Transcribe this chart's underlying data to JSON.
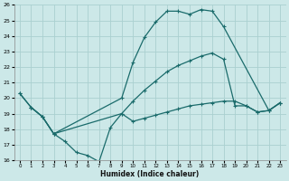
{
  "xlabel": "Humidex (Indice chaleur)",
  "bg_color": "#cce8e8",
  "grid_color": "#aad0d0",
  "line_color": "#1a6b6b",
  "ylim": [
    16,
    26
  ],
  "xlim": [
    -0.5,
    23.5
  ],
  "yticks": [
    16,
    17,
    18,
    19,
    20,
    21,
    22,
    23,
    24,
    25,
    26
  ],
  "xticks": [
    0,
    1,
    2,
    3,
    4,
    5,
    6,
    7,
    8,
    9,
    10,
    11,
    12,
    13,
    14,
    15,
    16,
    17,
    18,
    19,
    20,
    21,
    22,
    23
  ],
  "line1_x": [
    0,
    1,
    2,
    3,
    9,
    10,
    11,
    12,
    13,
    14,
    15,
    16,
    17,
    18,
    22,
    23
  ],
  "line1_y": [
    20.3,
    19.4,
    18.8,
    17.7,
    20.0,
    22.3,
    23.9,
    24.9,
    25.6,
    25.6,
    25.4,
    25.7,
    25.6,
    24.6,
    19.2,
    19.7
  ],
  "line2_x": [
    0,
    1,
    2,
    3,
    9,
    10,
    11,
    12,
    13,
    14,
    15,
    16,
    17,
    18,
    19,
    20,
    21,
    22,
    23
  ],
  "line2_y": [
    20.3,
    19.4,
    18.8,
    17.7,
    19.0,
    19.8,
    20.5,
    21.1,
    21.7,
    22.1,
    22.4,
    22.7,
    22.9,
    22.5,
    19.5,
    19.5,
    19.1,
    19.2,
    19.7
  ],
  "line3_x": [
    1,
    2,
    3,
    4,
    5,
    6,
    7,
    8,
    9,
    10,
    11,
    12,
    13,
    14,
    15,
    16,
    17,
    18,
    19,
    20,
    21,
    22,
    23
  ],
  "line3_y": [
    19.4,
    18.8,
    17.7,
    17.2,
    16.5,
    16.3,
    15.9,
    18.1,
    19.0,
    18.5,
    18.7,
    18.9,
    19.1,
    19.3,
    19.5,
    19.6,
    19.7,
    19.8,
    19.8,
    19.5,
    19.1,
    19.2,
    19.7
  ]
}
